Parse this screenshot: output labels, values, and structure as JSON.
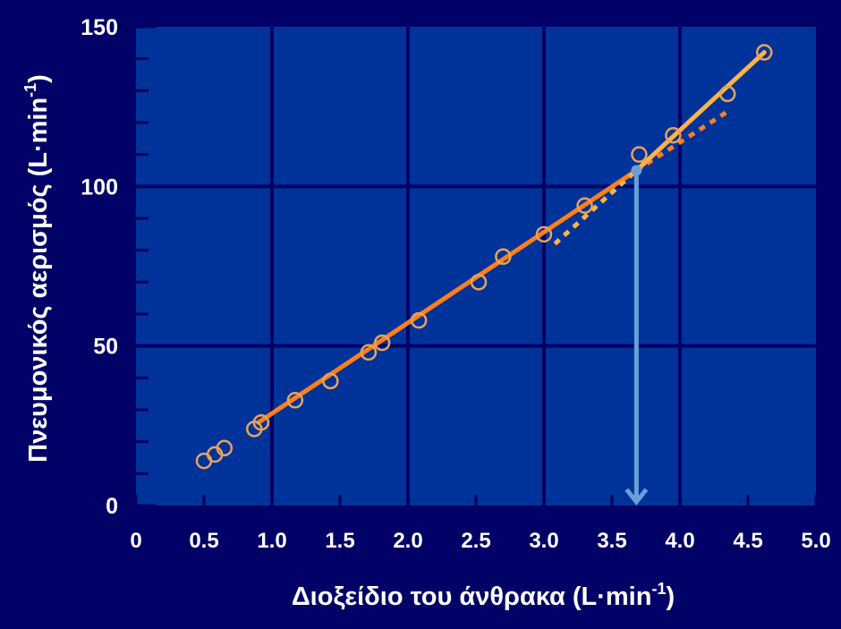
{
  "colors": {
    "background": "#000066",
    "plot_area": "#003399",
    "grid": "#000066",
    "axis_text": "#ffffff",
    "lower_fit": "#ff7f1a",
    "upper_fit": "#ffb347",
    "markers": "#e8a35a",
    "threshold_arrow": "#6a9fd8"
  },
  "chart_data": {
    "type": "scatter",
    "title": "",
    "xlabel": "Διοξείδιο του άνθρακα (L·min",
    "xlabel_sup": "-1",
    "xlabel_end": ")",
    "ylabel": "Πνευμονικός αερισμός (L·min",
    "ylabel_sup": "-1",
    "ylabel_end": ")",
    "xlim": [
      0,
      5.0
    ],
    "ylim": [
      0,
      150
    ],
    "x_ticks": [
      0,
      0.5,
      1.0,
      1.5,
      2.0,
      2.5,
      3.0,
      3.5,
      4.0,
      4.5,
      5.0
    ],
    "x_tick_labels": [
      "0",
      "0.5",
      "1.0",
      "1.5",
      "2.0",
      "2.5",
      "3.0",
      "3.5",
      "4.0",
      "4.5",
      "5.0"
    ],
    "y_ticks": [
      0,
      50,
      100,
      150
    ],
    "y_tick_labels": [
      "0",
      "50",
      "100",
      "150"
    ],
    "grid": true,
    "points": [
      {
        "x": 0.5,
        "y": 14
      },
      {
        "x": 0.58,
        "y": 16
      },
      {
        "x": 0.65,
        "y": 18
      },
      {
        "x": 0.87,
        "y": 24
      },
      {
        "x": 0.92,
        "y": 26
      },
      {
        "x": 1.17,
        "y": 33
      },
      {
        "x": 1.43,
        "y": 39
      },
      {
        "x": 1.71,
        "y": 48
      },
      {
        "x": 1.81,
        "y": 51
      },
      {
        "x": 2.08,
        "y": 58
      },
      {
        "x": 2.52,
        "y": 70
      },
      {
        "x": 2.7,
        "y": 78
      },
      {
        "x": 3.0,
        "y": 85
      },
      {
        "x": 3.3,
        "y": 94
      },
      {
        "x": 3.7,
        "y": 110
      },
      {
        "x": 3.95,
        "y": 116
      },
      {
        "x": 4.35,
        "y": 129
      },
      {
        "x": 4.62,
        "y": 142
      }
    ],
    "fit_lines": [
      {
        "style": "solid",
        "color": "#ff7f1a",
        "x": [
          0.9,
          3.68
        ],
        "y": [
          26,
          105
        ]
      },
      {
        "style": "dashed",
        "color": "#ff7f1a",
        "x": [
          3.68,
          4.37
        ],
        "y": [
          105,
          124
        ]
      },
      {
        "style": "solid",
        "color": "#ffb347",
        "x": [
          3.68,
          4.62
        ],
        "y": [
          105,
          142
        ]
      },
      {
        "style": "dashed",
        "color": "#ffb347",
        "x": [
          3.08,
          3.68
        ],
        "y": [
          82,
          105
        ]
      }
    ],
    "threshold": {
      "x": 3.68,
      "y_from": 105,
      "y_to": 0
    }
  }
}
